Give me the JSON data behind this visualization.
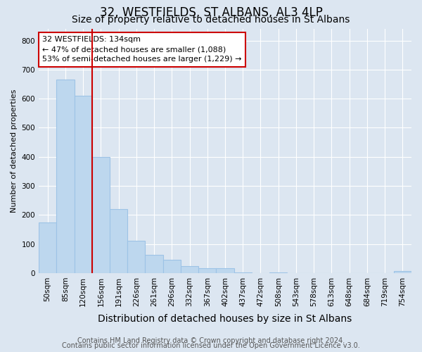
{
  "title": "32, WESTFIELDS, ST ALBANS, AL3 4LP",
  "subtitle": "Size of property relative to detached houses in St Albans",
  "xlabel": "Distribution of detached houses by size in St Albans",
  "ylabel": "Number of detached properties",
  "bar_labels": [
    "50sqm",
    "85sqm",
    "120sqm",
    "156sqm",
    "191sqm",
    "226sqm",
    "261sqm",
    "296sqm",
    "332sqm",
    "367sqm",
    "402sqm",
    "437sqm",
    "472sqm",
    "508sqm",
    "543sqm",
    "578sqm",
    "613sqm",
    "648sqm",
    "684sqm",
    "719sqm",
    "754sqm"
  ],
  "bar_values": [
    175,
    665,
    610,
    400,
    220,
    110,
    62,
    46,
    25,
    16,
    16,
    3,
    0,
    3,
    0,
    0,
    0,
    0,
    0,
    0,
    7
  ],
  "bar_color": "#bdd7ee",
  "bar_edgecolor": "#9dc3e6",
  "vline_color": "#cc0000",
  "annotation_line1": "32 WESTFIELDS: 134sqm",
  "annotation_line2": "← 47% of detached houses are smaller (1,088)",
  "annotation_line3": "53% of semi-detached houses are larger (1,229) →",
  "annotation_box_edgecolor": "#cc0000",
  "ylim": [
    0,
    840
  ],
  "yticks": [
    0,
    100,
    200,
    300,
    400,
    500,
    600,
    700,
    800
  ],
  "footer1": "Contains HM Land Registry data © Crown copyright and database right 2024.",
  "footer2": "Contains public sector information licensed under the Open Government Licence v3.0.",
  "bg_color": "#dce6f1",
  "plot_bg_color": "#dce6f1",
  "title_fontsize": 12,
  "subtitle_fontsize": 10,
  "xlabel_fontsize": 10,
  "ylabel_fontsize": 8,
  "tick_fontsize": 7.5,
  "footer_fontsize": 7,
  "annotation_fontsize": 8
}
